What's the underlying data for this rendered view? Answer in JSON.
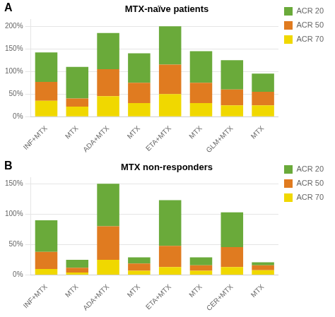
{
  "chart_data": [
    {
      "type": "bar",
      "stacked": true,
      "title": "MTX-naïve patients",
      "annotations": [
        "A"
      ],
      "categories": [
        "INF+MTX",
        "MTX",
        "ADA+MTX",
        "MTX",
        "ETA+MTX",
        "MTX",
        "GLM+MTX",
        "MTX"
      ],
      "series": [
        {
          "name": "ACR 20",
          "color": "#6aaa3a",
          "values": [
            65,
            70,
            80,
            65,
            85,
            70,
            65,
            40
          ]
        },
        {
          "name": "ACR 50",
          "color": "#e07b20",
          "values": [
            42,
            18,
            60,
            45,
            65,
            45,
            35,
            30
          ]
        },
        {
          "name": "ACR 70",
          "color": "#f0d800",
          "values": [
            35,
            22,
            45,
            30,
            50,
            30,
            25,
            25
          ]
        }
      ],
      "ylim": [
        0,
        215
      ],
      "yticks": [
        {
          "value": 0,
          "label": "0%"
        },
        {
          "value": 50,
          "label": "50%"
        },
        {
          "value": 100,
          "label": "100%"
        },
        {
          "value": 150,
          "label": "150%"
        },
        {
          "value": 200,
          "label": "200%"
        }
      ],
      "grid": "y",
      "legend": "right"
    },
    {
      "type": "bar",
      "stacked": true,
      "title": "MTX non-responders",
      "annotations": [
        "B"
      ],
      "categories": [
        "INF+MTX",
        "MTX",
        "ADA+MTX",
        "MTX",
        "ETA+MTX",
        "MTX",
        "CER+MTX",
        "MTX"
      ],
      "series": [
        {
          "name": "ACR 20",
          "color": "#6aaa3a",
          "values": [
            52,
            13,
            70,
            10,
            75,
            13,
            57,
            5
          ]
        },
        {
          "name": "ACR 50",
          "color": "#e07b20",
          "values": [
            28,
            8,
            55,
            12,
            35,
            9,
            33,
            8
          ]
        },
        {
          "name": "ACR 70",
          "color": "#f0d800",
          "values": [
            10,
            4,
            25,
            7,
            13,
            7,
            13,
            8
          ]
        }
      ],
      "ylim": [
        0,
        160
      ],
      "yticks": [
        {
          "value": 0,
          "label": "0%"
        },
        {
          "value": 50,
          "label": "50%"
        },
        {
          "value": 100,
          "label": "100%"
        },
        {
          "value": 150,
          "label": "150%"
        }
      ],
      "grid": "y",
      "legend": "right"
    }
  ]
}
